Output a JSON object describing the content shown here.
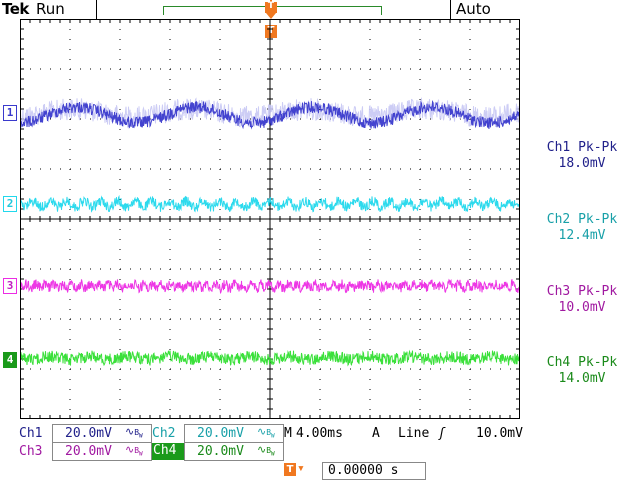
{
  "header": {
    "brand": "Tek",
    "run_state": "Run",
    "trigger_mode": "Auto",
    "trigger_marker": "T"
  },
  "colors": {
    "ch1": "#3a3acc",
    "ch1_light": "#c8c8f4",
    "ch2": "#22d8ec",
    "ch3": "#ec2ce4",
    "ch4": "#30de30",
    "ch4_label": "#1a9a1a",
    "trigger": "#f07820",
    "grid": "#000000"
  },
  "channels": [
    {
      "id": "ch1",
      "marker": "1",
      "meas_label": "Ch1 Pk-Pk",
      "meas_value": "18.0mV",
      "scale": "20.0mV",
      "name": "Ch1"
    },
    {
      "id": "ch2",
      "marker": "2",
      "meas_label": "Ch2 Pk-Pk",
      "meas_value": "12.4mV",
      "scale": "20.0mV",
      "name": "Ch2"
    },
    {
      "id": "ch3",
      "marker": "3",
      "meas_label": "Ch3 Pk-Pk",
      "meas_value": "10.0mV",
      "scale": "20.0mV",
      "name": "Ch3"
    },
    {
      "id": "ch4",
      "marker": "4",
      "meas_label": "Ch4 Pk-Pk",
      "meas_value": "14.0mV",
      "scale": "20.0mV",
      "name": "Ch4"
    }
  ],
  "timebase": {
    "label": "M",
    "value": "4.00ms",
    "trigger_channel": "A",
    "trigger_source": "Line",
    "trigger_slope": "ʃ",
    "trigger_level": "10.0mV"
  },
  "bandwidth_icon": "∿",
  "bandwidth_limit": "B",
  "bandwidth_limit_sub": "W",
  "trigger_position": {
    "icon": "T",
    "arrow": "▾",
    "value": "0.00000 s"
  }
}
